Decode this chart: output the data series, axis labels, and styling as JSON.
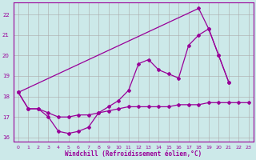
{
  "x": [
    0,
    1,
    2,
    3,
    4,
    5,
    6,
    7,
    8,
    9,
    10,
    11,
    12,
    13,
    14,
    15,
    16,
    17,
    18,
    19,
    20,
    21,
    22,
    23
  ],
  "line_dip": [
    18.2,
    17.4,
    17.4,
    17.0,
    16.3,
    16.2,
    16.3,
    16.5,
    17.2,
    17.5,
    17.8,
    18.3,
    19.6,
    19.8,
    19.3,
    19.1,
    18.9,
    20.5,
    21.0,
    21.3,
    20.0,
    18.7,
    null,
    null
  ],
  "line_steep": [
    18.2,
    null,
    null,
    null,
    null,
    null,
    null,
    null,
    null,
    null,
    null,
    null,
    null,
    null,
    null,
    null,
    null,
    null,
    22.3,
    21.3,
    20.0,
    18.7,
    null,
    null
  ],
  "line_flat": [
    18.2,
    17.4,
    17.4,
    17.2,
    17.0,
    17.0,
    17.1,
    17.1,
    17.2,
    17.3,
    17.4,
    17.5,
    17.5,
    17.5,
    17.5,
    17.5,
    17.6,
    17.6,
    17.6,
    17.7,
    17.7,
    17.7,
    17.7,
    17.7
  ],
  "bg_color": "#cce9e9",
  "line_color": "#990099",
  "grid_color": "#aaaaaa",
  "xlabel": "Windchill (Refroidissement éolien,°C)",
  "xlim": [
    -0.5,
    23.5
  ],
  "ylim": [
    15.8,
    22.6
  ],
  "yticks": [
    16,
    17,
    18,
    19,
    20,
    21,
    22
  ],
  "xticks": [
    0,
    1,
    2,
    3,
    4,
    5,
    6,
    7,
    8,
    9,
    10,
    11,
    12,
    13,
    14,
    15,
    16,
    17,
    18,
    19,
    20,
    21,
    22,
    23
  ]
}
